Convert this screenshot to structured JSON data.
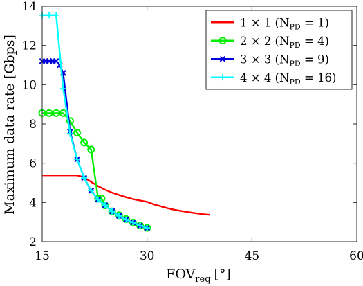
{
  "chart_data": {
    "type": "line",
    "xlabel": "FOV",
    "xlabel_sub": "req",
    "xlabel_unit": "[°]",
    "ylabel": "Maximum data rate [Gbps]",
    "xlim": [
      15,
      60
    ],
    "ylim": [
      2,
      14
    ],
    "xticks": [
      15,
      30,
      45,
      60
    ],
    "yticks": [
      2,
      4,
      6,
      8,
      10,
      12,
      14
    ],
    "grid": false,
    "legend_position": "top-right",
    "series": [
      {
        "name": "1 × 1 (N_PD = 1)",
        "legend_main": "1 × 1 (N",
        "legend_sub": "PD",
        "legend_tail": " = 1)",
        "color": "#ff0000",
        "marker": "none",
        "x": [
          15,
          16,
          17,
          18,
          19,
          20,
          21,
          22,
          23,
          24,
          25,
          26,
          27,
          28,
          29,
          30,
          31,
          32,
          33,
          34,
          35,
          36,
          37,
          38,
          39
        ],
        "y": [
          5.38,
          5.38,
          5.38,
          5.38,
          5.38,
          5.38,
          5.28,
          5.05,
          4.83,
          4.65,
          4.5,
          4.38,
          4.27,
          4.17,
          4.1,
          4.03,
          3.9,
          3.8,
          3.7,
          3.62,
          3.56,
          3.5,
          3.45,
          3.4,
          3.37
        ]
      },
      {
        "name": "2 × 2 (N_PD = 4)",
        "legend_main": "2 × 2 (N",
        "legend_sub": "PD",
        "legend_tail": " = 4)",
        "color": "#00ee00",
        "marker": "circle",
        "x": [
          15,
          16,
          17,
          18,
          19,
          20,
          21,
          22,
          23,
          23.5,
          24,
          25,
          26,
          27,
          28,
          29,
          30
        ],
        "y": [
          8.55,
          8.55,
          8.55,
          8.55,
          8.15,
          7.55,
          7.05,
          6.7,
          4.2,
          4.2,
          3.85,
          3.55,
          3.35,
          3.15,
          2.98,
          2.82,
          2.7
        ]
      },
      {
        "name": "3 × 3 (N_PD = 9)",
        "legend_main": "3 × 3 (N",
        "legend_sub": "PD",
        "legend_tail": " = 9)",
        "color": "#0000dd",
        "marker": "x",
        "x": [
          15,
          15.5,
          16,
          16.5,
          17,
          17.5,
          18,
          19,
          20,
          21,
          22,
          23,
          24,
          25,
          26,
          27,
          28,
          29,
          30
        ],
        "y": [
          11.2,
          11.2,
          11.2,
          11.2,
          11.2,
          11.0,
          10.6,
          7.6,
          6.2,
          5.25,
          4.6,
          4.15,
          3.85,
          3.55,
          3.32,
          3.12,
          2.98,
          2.82,
          2.7
        ]
      },
      {
        "name": "4 × 4 (N_PD = 16)",
        "legend_main": "4 × 4 (N",
        "legend_sub": "PD",
        "legend_tail": " = 16)",
        "color": "#00ffff",
        "marker": "plus",
        "x": [
          15,
          16,
          17,
          18,
          19,
          20,
          21,
          22,
          23,
          24,
          25,
          26,
          27,
          28,
          29,
          30
        ],
        "y": [
          13.55,
          13.55,
          13.55,
          9.8,
          7.5,
          6.2,
          5.25,
          4.6,
          4.15,
          3.85,
          3.55,
          3.32,
          3.12,
          2.98,
          2.82,
          2.7
        ]
      }
    ]
  }
}
